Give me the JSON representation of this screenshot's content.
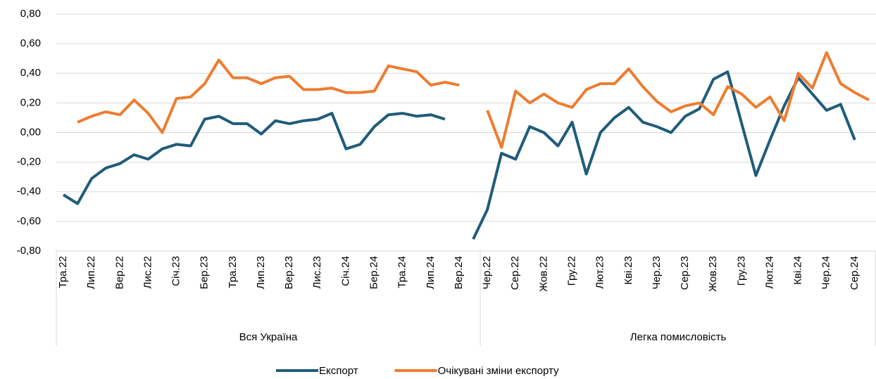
{
  "chart_data": {
    "type": "line",
    "groups": [
      {
        "name": "Вся Україна",
        "categories": [
          "Тра.22",
          null,
          "Лип.22",
          null,
          "Вер.22",
          null,
          "Лис.22",
          null,
          "Січ.23",
          null,
          "Бер.23",
          null,
          "Тра.23",
          null,
          "Лип.23",
          null,
          "Вер.23",
          null,
          "Лис.23",
          null,
          "Січ.24",
          null,
          "Бер.24",
          null,
          "Тра.24",
          null,
          "Лип.24",
          null,
          "Вер.24",
          null
        ]
      },
      {
        "name": "Легка помисловість",
        "categories": [
          "Чер.22",
          null,
          "Сер.22",
          null,
          "Жов.22",
          null,
          "Гру.22",
          null,
          "Лют.23",
          null,
          "Кві.23",
          null,
          "Чер.23",
          null,
          "Сер.23",
          null,
          "Жов.23",
          null,
          "Гру.23",
          null,
          "Лют.24",
          null,
          "Кві.24",
          null,
          "Чер.24",
          null,
          "Сер.24",
          null
        ]
      }
    ],
    "series": [
      {
        "name": "Експорт",
        "color": "#1f5c7a",
        "values": [
          -0.42,
          -0.48,
          -0.31,
          -0.24,
          -0.21,
          -0.15,
          -0.18,
          -0.11,
          -0.08,
          -0.09,
          0.09,
          0.11,
          0.06,
          0.06,
          -0.01,
          0.08,
          0.06,
          0.08,
          0.09,
          0.13,
          -0.11,
          -0.08,
          0.04,
          0.12,
          0.13,
          0.11,
          0.12,
          0.09,
          null,
          -0.72,
          -0.52,
          -0.14,
          -0.18,
          0.04,
          0.0,
          -0.09,
          0.07,
          -0.28,
          0.0,
          0.1,
          0.17,
          0.07,
          0.04,
          0.0,
          0.11,
          0.16,
          0.36,
          0.41,
          0.06,
          -0.29,
          -0.05,
          0.18,
          0.37,
          0.26,
          0.15,
          0.19,
          -0.05,
          null
        ]
      },
      {
        "name": "Очікувані зміни експорту",
        "color": "#ed7d31",
        "values": [
          null,
          0.07,
          0.11,
          0.14,
          0.12,
          0.22,
          0.13,
          0.0,
          0.23,
          0.24,
          0.33,
          0.49,
          0.37,
          0.37,
          0.33,
          0.37,
          0.38,
          0.29,
          0.29,
          0.3,
          0.27,
          0.27,
          0.28,
          0.45,
          0.43,
          0.41,
          0.32,
          0.34,
          0.32,
          null,
          0.15,
          -0.1,
          0.28,
          0.2,
          0.26,
          0.2,
          0.17,
          0.29,
          0.33,
          0.33,
          0.43,
          0.31,
          0.21,
          0.14,
          0.18,
          0.2,
          0.12,
          0.31,
          0.26,
          0.17,
          0.24,
          0.08,
          0.4,
          0.3,
          0.54,
          0.33,
          0.27,
          0.22
        ]
      }
    ],
    "ylim": [
      -0.8,
      0.8
    ],
    "yticks": [
      {
        "value": -0.8,
        "label": "-0,80"
      },
      {
        "value": -0.6,
        "label": "-0,60"
      },
      {
        "value": -0.4,
        "label": "-0,40"
      },
      {
        "value": -0.2,
        "label": "-0,20"
      },
      {
        "value": 0,
        "label": "0,00"
      },
      {
        "value": 0.2,
        "label": "0,20"
      },
      {
        "value": 0.4,
        "label": "0,40"
      },
      {
        "value": 0.6,
        "label": "0,60"
      },
      {
        "value": 0.8,
        "label": "0,80"
      }
    ],
    "grid": true,
    "legend": "bottom"
  }
}
